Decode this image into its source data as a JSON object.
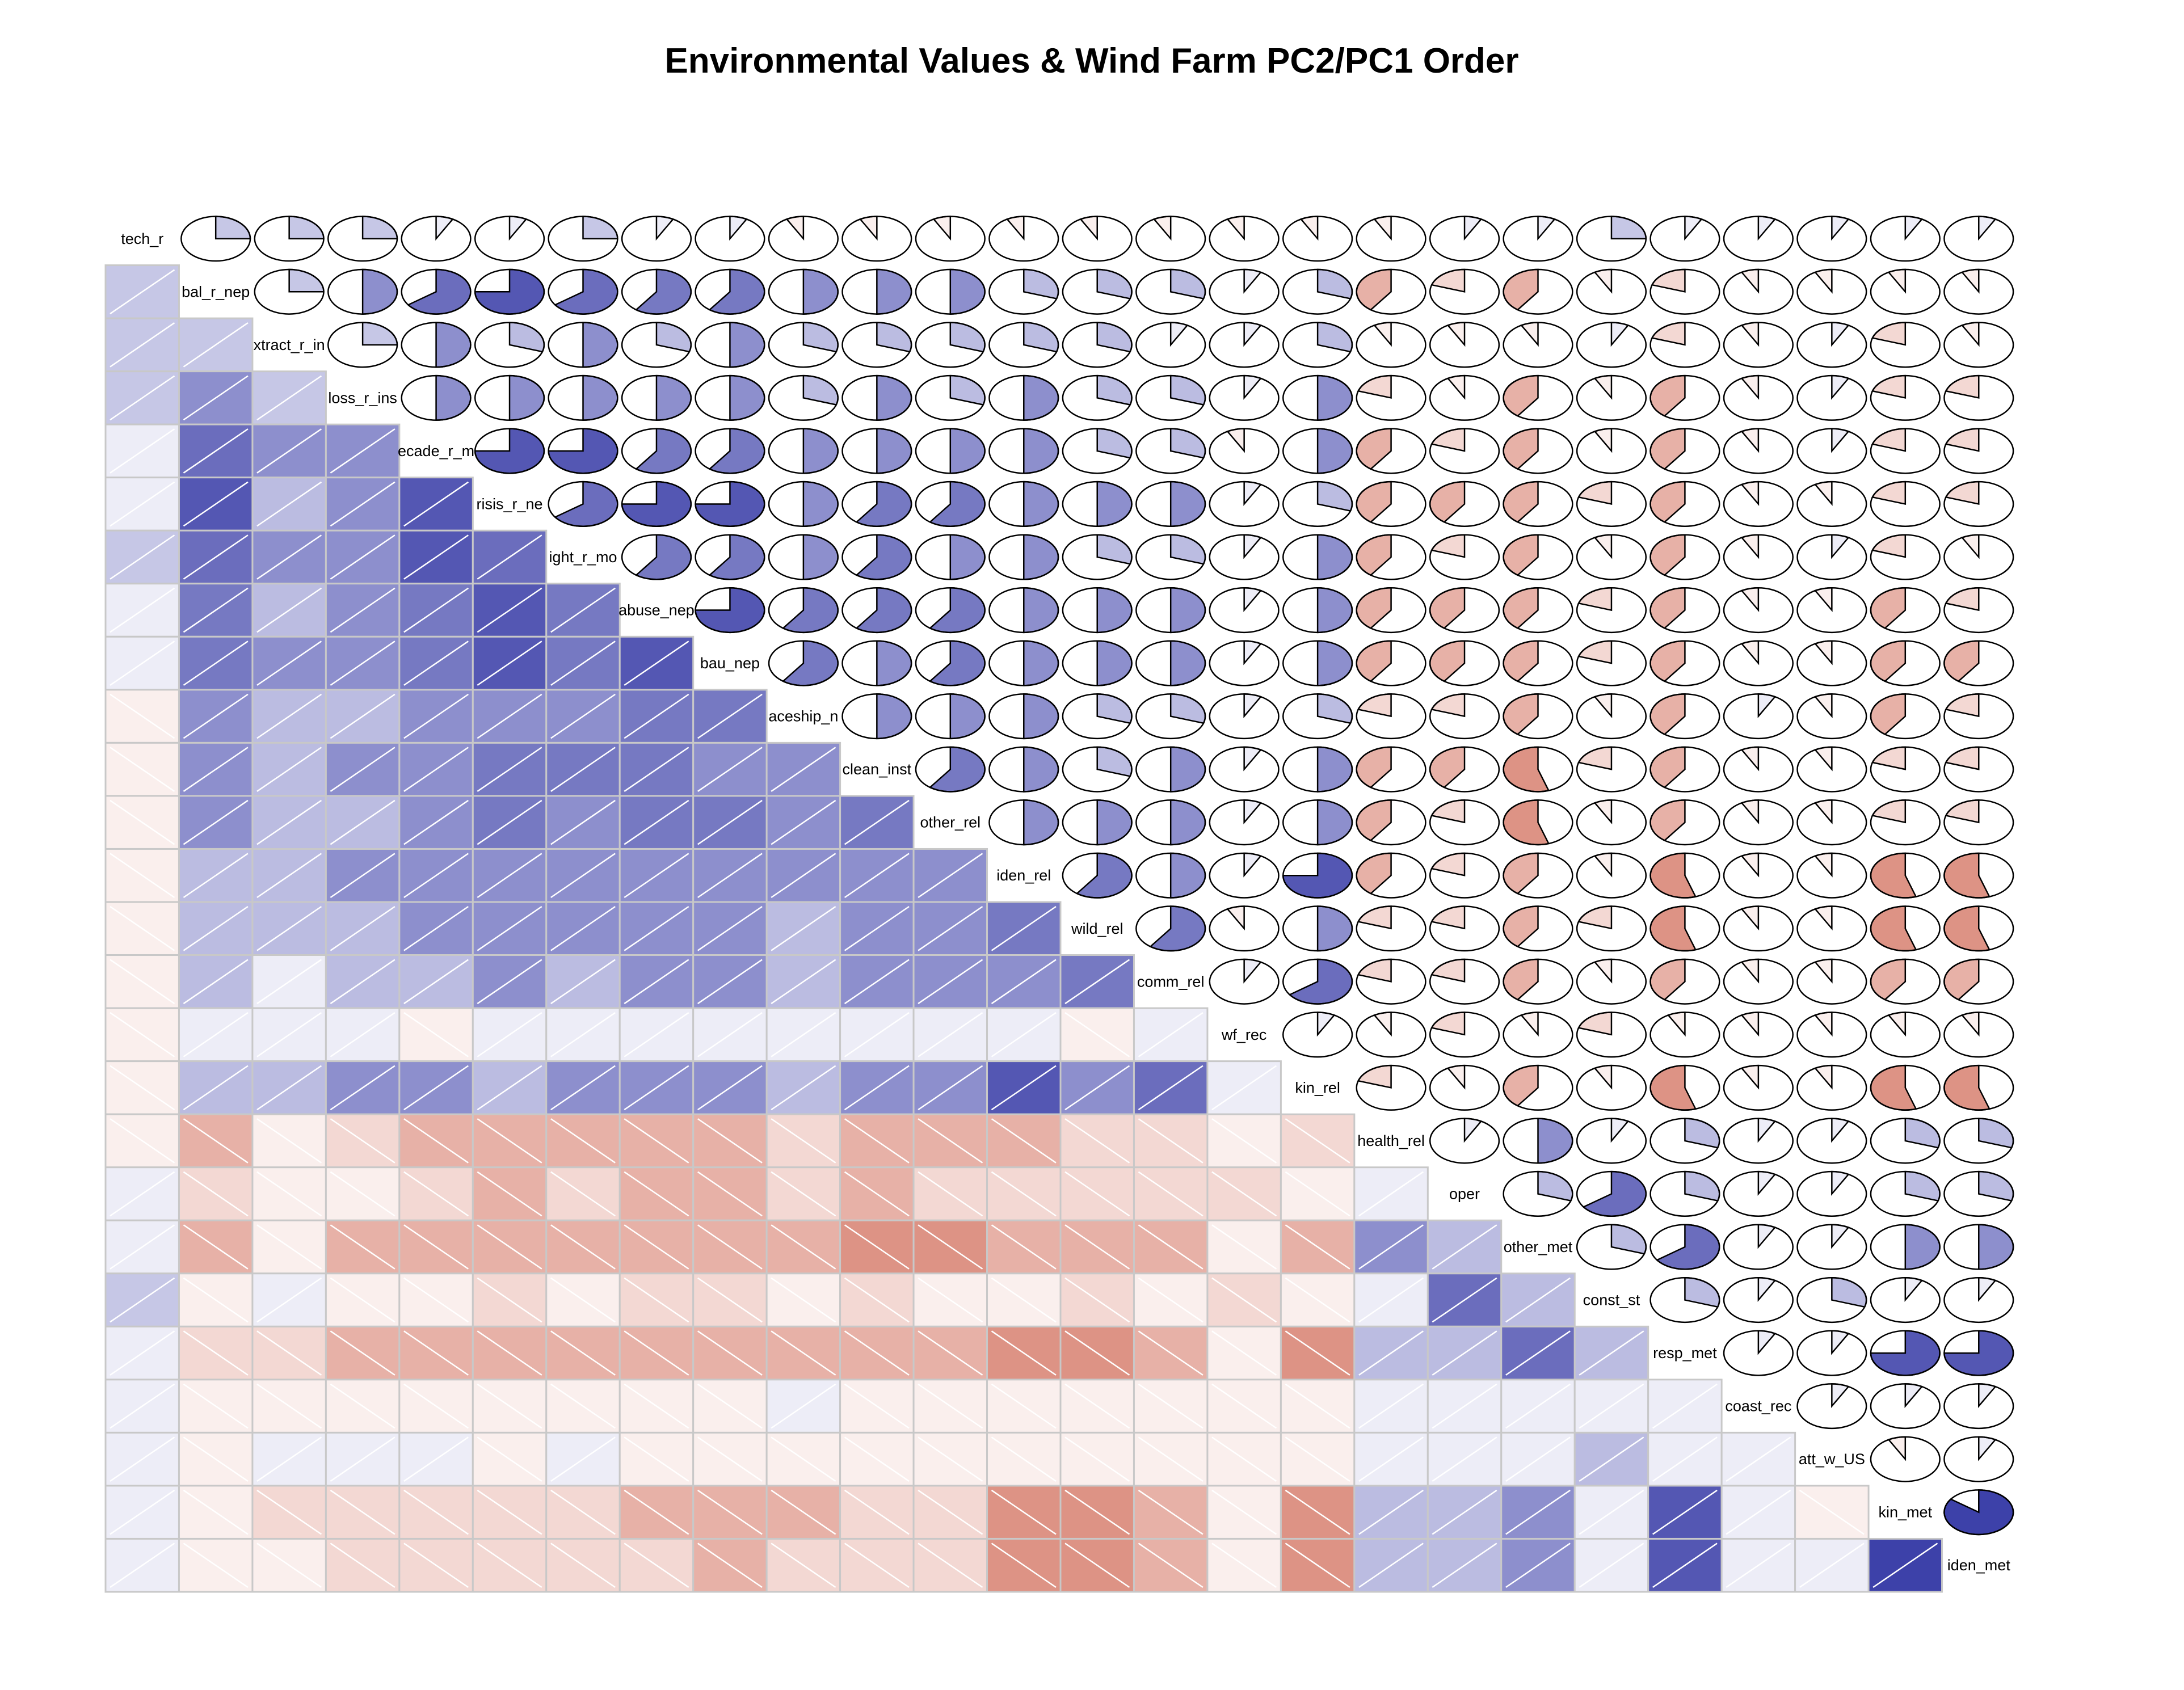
{
  "chart_data": {
    "type": "heatmap",
    "title": "Environmental Values & Wind Farm PC2/PC1 Order",
    "variables": [
      "tech_r",
      "bal_r_nep",
      "xtract_r_in",
      "loss_r_ins",
      "ecade_r_m",
      "risis_r_ne",
      "ight_r_mo",
      "abuse_nep",
      "bau_nep",
      "aceship_n",
      "clean_inst",
      "other_rel",
      "iden_rel",
      "wild_rel",
      "comm_rel",
      "wf_rec",
      "kin_rel",
      "health_rel",
      "oper",
      "other_met",
      "const_st",
      "resp_met",
      "coast_rec",
      "att_w_US",
      "kin_met",
      "iden_met"
    ],
    "lower_panel": "shade",
    "upper_panel": "pie",
    "color_scale": {
      "negative": "#c23b22",
      "zero": "#ffffff",
      "positive": "#1b1f9a",
      "range": [
        -1,
        1
      ]
    },
    "correlations": [
      [
        1.0,
        0.25,
        0.25,
        0.25,
        0.08,
        0.08,
        0.25,
        0.08,
        0.08,
        -0.08,
        -0.08,
        -0.08,
        -0.08,
        -0.08,
        -0.08,
        -0.08,
        -0.08,
        -0.08,
        0.08,
        0.08,
        0.25,
        0.08,
        0.08,
        0.08,
        0.08,
        0.08
      ],
      [
        0.25,
        1.0,
        0.25,
        0.5,
        0.65,
        0.75,
        0.65,
        0.6,
        0.6,
        0.5,
        0.5,
        0.5,
        0.3,
        0.3,
        0.3,
        0.08,
        0.3,
        -0.4,
        -0.2,
        -0.4,
        -0.08,
        -0.2,
        -0.08,
        -0.08,
        -0.08,
        -0.08
      ],
      [
        0.25,
        0.25,
        1.0,
        0.25,
        0.5,
        0.3,
        0.5,
        0.3,
        0.5,
        0.3,
        0.3,
        0.3,
        0.3,
        0.3,
        0.08,
        0.08,
        0.3,
        -0.08,
        -0.08,
        -0.08,
        0.08,
        -0.2,
        -0.08,
        0.08,
        -0.2,
        -0.08
      ],
      [
        0.25,
        0.5,
        0.25,
        1.0,
        0.5,
        0.5,
        0.5,
        0.5,
        0.5,
        0.3,
        0.5,
        0.3,
        0.5,
        0.3,
        0.3,
        0.08,
        0.5,
        -0.2,
        -0.08,
        -0.4,
        -0.08,
        -0.4,
        -0.08,
        0.08,
        -0.2,
        -0.2
      ],
      [
        0.08,
        0.65,
        0.5,
        0.5,
        1.0,
        0.75,
        0.75,
        0.6,
        0.6,
        0.5,
        0.5,
        0.5,
        0.5,
        0.3,
        0.3,
        -0.08,
        0.5,
        -0.4,
        -0.2,
        -0.4,
        -0.08,
        -0.4,
        -0.08,
        0.08,
        -0.2,
        -0.2
      ],
      [
        0.08,
        0.75,
        0.3,
        0.5,
        0.75,
        1.0,
        0.65,
        0.75,
        0.75,
        0.5,
        0.6,
        0.6,
        0.5,
        0.5,
        0.5,
        0.08,
        0.3,
        -0.4,
        -0.4,
        -0.4,
        -0.2,
        -0.4,
        -0.08,
        -0.08,
        -0.2,
        -0.2
      ],
      [
        0.25,
        0.65,
        0.5,
        0.5,
        0.75,
        0.65,
        1.0,
        0.6,
        0.6,
        0.5,
        0.6,
        0.5,
        0.5,
        0.3,
        0.3,
        0.08,
        0.5,
        -0.4,
        -0.2,
        -0.4,
        -0.08,
        -0.4,
        -0.08,
        0.08,
        -0.2,
        -0.08
      ],
      [
        0.08,
        0.6,
        0.3,
        0.5,
        0.6,
        0.75,
        0.6,
        1.0,
        0.75,
        0.6,
        0.6,
        0.6,
        0.5,
        0.5,
        0.5,
        0.08,
        0.5,
        -0.4,
        -0.4,
        -0.4,
        -0.2,
        -0.4,
        -0.08,
        -0.08,
        -0.4,
        -0.2
      ],
      [
        0.08,
        0.6,
        0.5,
        0.5,
        0.6,
        0.75,
        0.6,
        0.75,
        1.0,
        0.6,
        0.5,
        0.6,
        0.5,
        0.5,
        0.5,
        0.08,
        0.5,
        -0.4,
        -0.4,
        -0.4,
        -0.2,
        -0.4,
        -0.08,
        -0.08,
        -0.4,
        -0.4
      ],
      [
        -0.08,
        0.5,
        0.3,
        0.3,
        0.5,
        0.5,
        0.5,
        0.6,
        0.6,
        1.0,
        0.5,
        0.5,
        0.5,
        0.3,
        0.3,
        0.08,
        0.3,
        -0.2,
        -0.2,
        -0.4,
        -0.08,
        -0.4,
        0.08,
        -0.08,
        -0.4,
        -0.2
      ],
      [
        -0.08,
        0.5,
        0.3,
        0.5,
        0.5,
        0.6,
        0.6,
        0.6,
        0.5,
        0.5,
        1.0,
        0.6,
        0.5,
        0.3,
        0.5,
        0.08,
        0.5,
        -0.4,
        -0.4,
        -0.55,
        -0.2,
        -0.4,
        -0.08,
        -0.08,
        -0.2,
        -0.2
      ],
      [
        -0.08,
        0.5,
        0.3,
        0.3,
        0.5,
        0.6,
        0.5,
        0.6,
        0.6,
        0.5,
        0.6,
        1.0,
        0.5,
        0.5,
        0.5,
        0.08,
        0.5,
        -0.4,
        -0.2,
        -0.55,
        -0.08,
        -0.4,
        -0.08,
        -0.08,
        -0.2,
        -0.2
      ],
      [
        -0.08,
        0.3,
        0.3,
        0.5,
        0.5,
        0.5,
        0.5,
        0.5,
        0.5,
        0.5,
        0.5,
        0.5,
        1.0,
        0.6,
        0.5,
        0.08,
        0.75,
        -0.4,
        -0.2,
        -0.4,
        -0.08,
        -0.55,
        -0.08,
        -0.08,
        -0.55,
        -0.55
      ],
      [
        -0.08,
        0.3,
        0.3,
        0.3,
        0.5,
        0.5,
        0.5,
        0.5,
        0.5,
        0.3,
        0.5,
        0.5,
        0.6,
        1.0,
        0.6,
        -0.08,
        0.5,
        -0.2,
        -0.2,
        -0.4,
        -0.2,
        -0.55,
        -0.08,
        -0.08,
        -0.55,
        -0.55
      ],
      [
        -0.08,
        0.3,
        0.08,
        0.3,
        0.3,
        0.5,
        0.3,
        0.5,
        0.5,
        0.3,
        0.5,
        0.5,
        0.5,
        0.6,
        1.0,
        0.08,
        0.65,
        -0.2,
        -0.2,
        -0.4,
        -0.08,
        -0.4,
        -0.08,
        -0.08,
        -0.4,
        -0.4
      ],
      [
        -0.08,
        0.08,
        0.08,
        0.08,
        -0.08,
        0.08,
        0.08,
        0.08,
        0.08,
        0.08,
        0.08,
        0.08,
        0.08,
        -0.08,
        0.08,
        1.0,
        0.08,
        -0.08,
        -0.2,
        -0.08,
        -0.2,
        -0.08,
        -0.08,
        -0.08,
        -0.08,
        -0.08
      ],
      [
        -0.08,
        0.3,
        0.3,
        0.5,
        0.5,
        0.3,
        0.5,
        0.5,
        0.5,
        0.3,
        0.5,
        0.5,
        0.75,
        0.5,
        0.65,
        0.08,
        1.0,
        -0.2,
        -0.08,
        -0.4,
        -0.08,
        -0.55,
        -0.08,
        -0.08,
        -0.55,
        -0.55
      ],
      [
        -0.08,
        -0.4,
        -0.08,
        -0.2,
        -0.4,
        -0.4,
        -0.4,
        -0.4,
        -0.4,
        -0.2,
        -0.4,
        -0.4,
        -0.4,
        -0.2,
        -0.2,
        -0.08,
        -0.2,
        1.0,
        0.08,
        0.5,
        0.08,
        0.3,
        0.08,
        0.08,
        0.3,
        0.3
      ],
      [
        0.08,
        -0.2,
        -0.08,
        -0.08,
        -0.2,
        -0.4,
        -0.2,
        -0.4,
        -0.4,
        -0.2,
        -0.4,
        -0.2,
        -0.2,
        -0.2,
        -0.2,
        -0.2,
        -0.08,
        0.08,
        1.0,
        0.3,
        0.65,
        0.3,
        0.08,
        0.08,
        0.3,
        0.3
      ],
      [
        0.08,
        -0.4,
        -0.08,
        -0.4,
        -0.4,
        -0.4,
        -0.4,
        -0.4,
        -0.4,
        -0.4,
        -0.55,
        -0.55,
        -0.4,
        -0.4,
        -0.4,
        -0.08,
        -0.4,
        0.5,
        0.3,
        1.0,
        0.3,
        0.65,
        0.08,
        0.08,
        0.5,
        0.5
      ],
      [
        0.25,
        -0.08,
        0.08,
        -0.08,
        -0.08,
        -0.2,
        -0.08,
        -0.2,
        -0.2,
        -0.08,
        -0.2,
        -0.08,
        -0.08,
        -0.2,
        -0.08,
        -0.2,
        -0.08,
        0.08,
        0.65,
        0.3,
        1.0,
        0.3,
        0.08,
        0.3,
        0.08,
        0.08
      ],
      [
        0.08,
        -0.2,
        -0.2,
        -0.4,
        -0.4,
        -0.4,
        -0.4,
        -0.4,
        -0.4,
        -0.4,
        -0.4,
        -0.4,
        -0.55,
        -0.55,
        -0.4,
        -0.08,
        -0.55,
        0.3,
        0.3,
        0.65,
        0.3,
        1.0,
        0.08,
        0.08,
        0.75,
        0.75
      ],
      [
        0.08,
        -0.08,
        -0.08,
        -0.08,
        -0.08,
        -0.08,
        -0.08,
        -0.08,
        -0.08,
        0.08,
        -0.08,
        -0.08,
        -0.08,
        -0.08,
        -0.08,
        -0.08,
        -0.08,
        0.08,
        0.08,
        0.08,
        0.08,
        0.08,
        1.0,
        0.08,
        0.08,
        0.08
      ],
      [
        0.08,
        -0.08,
        0.08,
        0.08,
        0.08,
        -0.08,
        0.08,
        -0.08,
        -0.08,
        -0.08,
        -0.08,
        -0.08,
        -0.08,
        -0.08,
        -0.08,
        -0.08,
        -0.08,
        0.08,
        0.08,
        0.08,
        0.3,
        0.08,
        0.08,
        1.0,
        -0.08,
        0.08
      ],
      [
        0.08,
        -0.08,
        -0.2,
        -0.2,
        -0.2,
        -0.2,
        -0.2,
        -0.4,
        -0.4,
        -0.4,
        -0.2,
        -0.2,
        -0.55,
        -0.55,
        -0.4,
        -0.08,
        -0.55,
        0.3,
        0.3,
        0.5,
        0.08,
        0.75,
        0.08,
        -0.08,
        1.0,
        0.85
      ],
      [
        0.08,
        -0.08,
        -0.08,
        -0.2,
        -0.2,
        -0.2,
        -0.2,
        -0.2,
        -0.4,
        -0.2,
        -0.2,
        -0.2,
        -0.55,
        -0.55,
        -0.4,
        -0.08,
        -0.55,
        0.3,
        0.3,
        0.5,
        0.08,
        0.75,
        0.08,
        0.08,
        0.85,
        1.0
      ]
    ]
  }
}
